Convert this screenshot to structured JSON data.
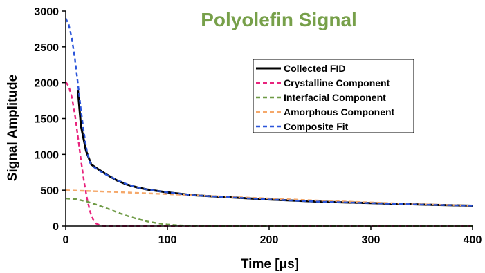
{
  "chart_data": {
    "type": "line",
    "title": "Polyolefin Signal",
    "title_color": "#77a04a",
    "xlabel": "Time [μs]",
    "ylabel": "Signal Amplitude",
    "xlim": [
      0,
      400
    ],
    "ylim": [
      0,
      3000
    ],
    "xticks": [
      0,
      100,
      200,
      300,
      400
    ],
    "yticks": [
      0,
      500,
      1000,
      1500,
      2000,
      2500,
      3000
    ],
    "grid": false,
    "legend_position": "right",
    "series": [
      {
        "name": "Collected FID",
        "color": "#000000",
        "style": "solid",
        "x": [
          12,
          15,
          20,
          25,
          30,
          40,
          50,
          60,
          70,
          80,
          100,
          125,
          150,
          200,
          250,
          300,
          350,
          400
        ],
        "y": [
          1900,
          1400,
          1050,
          860,
          810,
          720,
          640,
          580,
          540,
          510,
          470,
          430,
          410,
          370,
          340,
          320,
          300,
          285
        ]
      },
      {
        "name": "Crystalline Component",
        "color": "#e8237d",
        "style": "dashed",
        "x": [
          0,
          3,
          6,
          9,
          12,
          15,
          18,
          21,
          24,
          27,
          30,
          35,
          40,
          400
        ],
        "y": [
          2010,
          1950,
          1800,
          1560,
          1250,
          920,
          620,
          380,
          200,
          90,
          35,
          5,
          0,
          0
        ]
      },
      {
        "name": "Interfacial Component",
        "color": "#6e9a45",
        "style": "dashed",
        "x": [
          0,
          10,
          20,
          30,
          40,
          50,
          60,
          70,
          80,
          90,
          100,
          110,
          120,
          150,
          400
        ],
        "y": [
          385,
          375,
          345,
          300,
          250,
          195,
          145,
          100,
          65,
          40,
          22,
          12,
          6,
          0,
          0
        ]
      },
      {
        "name": "Amorphous Component",
        "color": "#f5a86a",
        "style": "dashed",
        "x": [
          0,
          50,
          100,
          150,
          200,
          250,
          300,
          350,
          400
        ],
        "y": [
          500,
          475,
          445,
          415,
          385,
          355,
          330,
          305,
          285
        ]
      },
      {
        "name": "Composite Fit",
        "color": "#2b55d9",
        "style": "dashed",
        "x": [
          0,
          3,
          6,
          9,
          12,
          15,
          18,
          21,
          24,
          27,
          30,
          35,
          40,
          50,
          60,
          70,
          80,
          100,
          125,
          150,
          200,
          250,
          300,
          350,
          400
        ],
        "y": [
          2900,
          2810,
          2620,
          2340,
          1990,
          1620,
          1290,
          1030,
          880,
          830,
          800,
          755,
          715,
          645,
          585,
          540,
          510,
          470,
          430,
          410,
          370,
          340,
          320,
          300,
          285
        ]
      }
    ]
  }
}
